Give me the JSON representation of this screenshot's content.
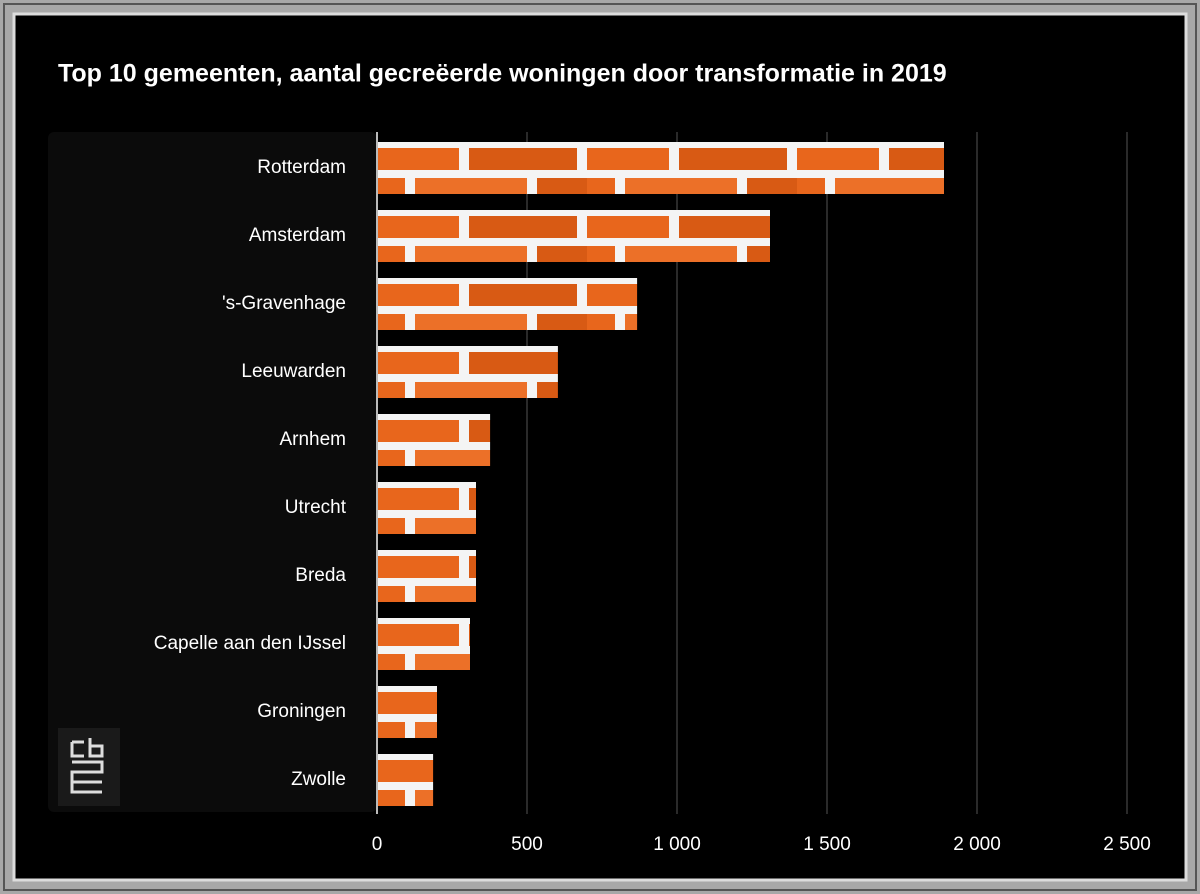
{
  "chart_data": {
    "type": "hbar",
    "title": "Top 10 gemeenten, aantal gecreëerde woningen door transformatie in 2019",
    "categories": [
      "Rotterdam",
      "Amsterdam",
      "'s-Gravenhage",
      "Leeuwarden",
      "Arnhem",
      "Utrecht",
      "Breda",
      "Capelle aan den IJssel",
      "Groningen",
      "Zwolle"
    ],
    "values": [
      1890,
      1310,
      867,
      603,
      377,
      330,
      330,
      310,
      200,
      187
    ],
    "color": "#e8661c",
    "xlim": [
      0,
      2500
    ],
    "xticks": [
      0,
      500,
      {
        "value": 1000,
        "label": "1 000"
      },
      {
        "value": 1500,
        "label": "1 500"
      },
      {
        "value": 2000,
        "label": "2 000"
      },
      {
        "value": 2500,
        "label": "2 500"
      }
    ],
    "grid": true
  }
}
